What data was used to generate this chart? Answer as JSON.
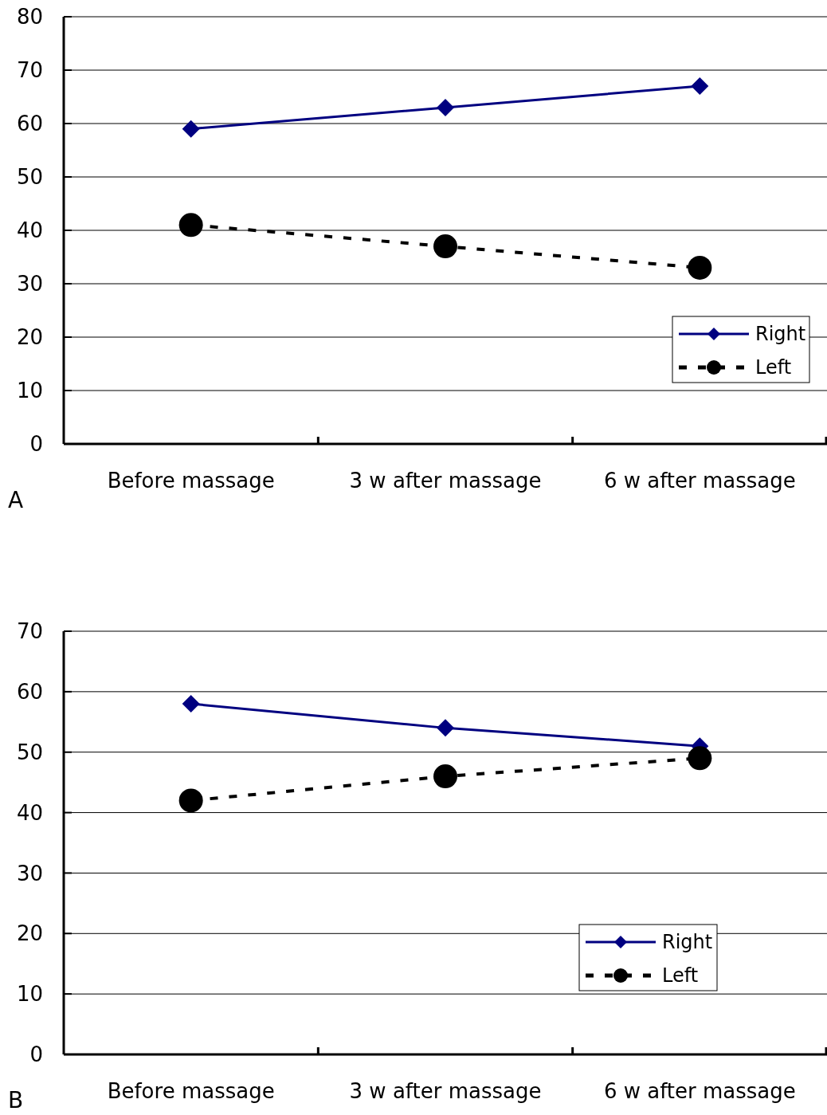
{
  "chart_data": [
    {
      "type": "line",
      "categories": [
        "Before massage",
        "3 w after massage",
        "6 w after massage"
      ],
      "series": [
        {
          "name": "Right",
          "color": "#000080",
          "values": [
            59,
            63,
            67
          ],
          "marker": "diamond",
          "line_style": "solid"
        },
        {
          "name": "Left",
          "color": "#000000",
          "values": [
            41,
            37,
            33
          ],
          "marker": "circle",
          "line_style": "dashed"
        }
      ],
      "ylim": [
        0,
        80
      ],
      "yticks": [
        0,
        10,
        20,
        30,
        40,
        50,
        60,
        70,
        80
      ],
      "grid": "y",
      "legend": "bottom right",
      "annotations": [
        "A"
      ]
    },
    {
      "type": "line",
      "categories": [
        "Before massage",
        "3 w after massage",
        "6 w after massage"
      ],
      "series": [
        {
          "name": "Right",
          "color": "#000080",
          "values": [
            58,
            54,
            51
          ],
          "marker": "diamond",
          "line_style": "solid"
        },
        {
          "name": "Left",
          "color": "#000000",
          "values": [
            42,
            46,
            49
          ],
          "marker": "circle",
          "line_style": "dashed"
        }
      ],
      "ylim": [
        0,
        70
      ],
      "yticks": [
        0,
        10,
        20,
        30,
        40,
        50,
        60,
        70
      ],
      "grid": "y",
      "legend": "bottom right",
      "annotations": [
        "B"
      ]
    }
  ]
}
